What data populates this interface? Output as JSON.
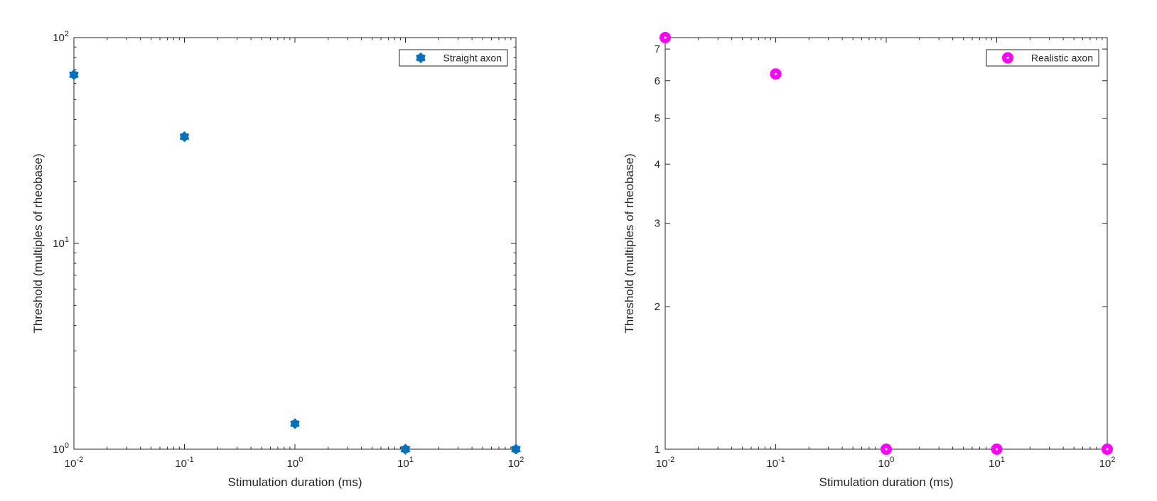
{
  "chart_data": [
    {
      "type": "scatter",
      "title": "",
      "xlabel": "Stimulation duration (ms)",
      "ylabel": "Threshold (multiples of rheobase)",
      "xscale": "log",
      "yscale": "log",
      "xlim": [
        0.01,
        100
      ],
      "ylim": [
        1,
        100
      ],
      "xticks": [
        {
          "value": 0.01,
          "base": "10",
          "exp": "-2"
        },
        {
          "value": 0.1,
          "base": "10",
          "exp": "-1"
        },
        {
          "value": 1,
          "base": "10",
          "exp": "0"
        },
        {
          "value": 10,
          "base": "10",
          "exp": "1"
        },
        {
          "value": 100,
          "base": "10",
          "exp": "2"
        }
      ],
      "yticks": [
        {
          "value": 1,
          "base": "10",
          "exp": "0"
        },
        {
          "value": 10,
          "base": "10",
          "exp": "1"
        },
        {
          "value": 100,
          "base": "10",
          "exp": "2"
        }
      ],
      "grid": false,
      "legend": "top-right",
      "series": [
        {
          "name": "Straight axon",
          "color": "#0072BD",
          "marker": "hexagram",
          "x": [
            0.01,
            0.1,
            1,
            10,
            100
          ],
          "y": [
            66,
            33,
            1.33,
            1.0,
            1.0
          ]
        }
      ]
    },
    {
      "type": "scatter",
      "title": "",
      "xlabel": "Stimulation duration (ms)",
      "ylabel": "Threshold (multiples of rheobase)",
      "xscale": "log",
      "yscale": "log",
      "xlim": [
        0.01,
        100
      ],
      "ylim": [
        1,
        7.4
      ],
      "xticks": [
        {
          "value": 0.01,
          "base": "10",
          "exp": "-2"
        },
        {
          "value": 0.1,
          "base": "10",
          "exp": "-1"
        },
        {
          "value": 1,
          "base": "10",
          "exp": "0"
        },
        {
          "value": 10,
          "base": "10",
          "exp": "1"
        },
        {
          "value": 100,
          "base": "10",
          "exp": "2"
        }
      ],
      "yticks": [
        {
          "value": 1,
          "label": "1"
        },
        {
          "value": 2,
          "label": "2"
        },
        {
          "value": 3,
          "label": "3"
        },
        {
          "value": 4,
          "label": "4"
        },
        {
          "value": 5,
          "label": "5"
        },
        {
          "value": 6,
          "label": "6"
        },
        {
          "value": 7,
          "label": "7"
        }
      ],
      "grid": false,
      "legend": "top-right",
      "series": [
        {
          "name": "Realistic axon",
          "color": "#FF00FF",
          "marker": "circle",
          "x": [
            0.01,
            0.1,
            1,
            10,
            100
          ],
          "y": [
            7.4,
            6.2,
            1.0,
            1.0,
            1.0
          ]
        }
      ]
    }
  ]
}
